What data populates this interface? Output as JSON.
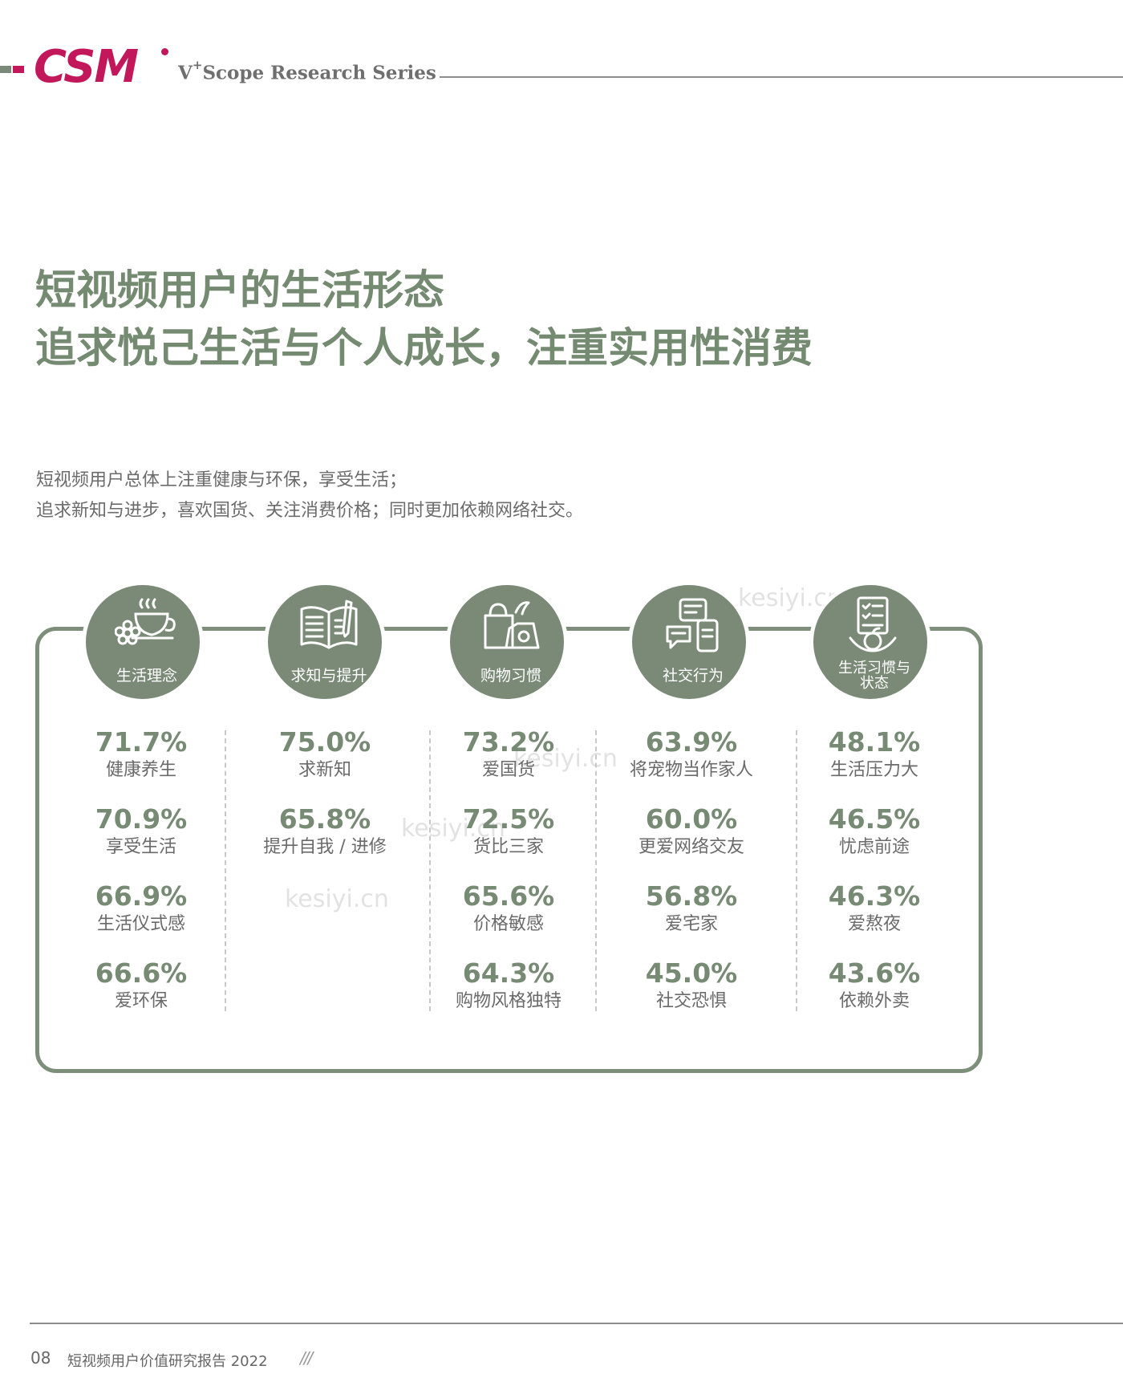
{
  "header": {
    "logo_text": "CSM",
    "series_prefix": "V",
    "series_sup": "+",
    "series_rest": "Scope Research Series",
    "brand_color": "#c2185b",
    "accent_color": "#7a8a77"
  },
  "title": {
    "line1": "短视频用户的生活形态",
    "line2": "追求悦己生活与个人成长，注重实用性消费"
  },
  "intro": {
    "line1": "短视频用户总体上注重健康与环保，享受生活；",
    "line2": "追求新知与进步，喜欢国货、关注消费价格；同时更加依赖网络社交。"
  },
  "watermark": "kesiyi.cn",
  "categories": [
    {
      "label": "生活理念",
      "icon": "tea-cup-flower-icon",
      "items": [
        {
          "pct": "71.7%",
          "label": "健康养生"
        },
        {
          "pct": "70.9%",
          "label": "享受生活"
        },
        {
          "pct": "66.9%",
          "label": "生活仪式感"
        },
        {
          "pct": "66.6%",
          "label": "爱环保"
        }
      ]
    },
    {
      "label": "求知与提升",
      "icon": "book-pen-icon",
      "items": [
        {
          "pct": "75.0%",
          "label": "求新知"
        },
        {
          "pct": "65.8%",
          "label": "提升自我 / 进修"
        }
      ]
    },
    {
      "label": "购物习惯",
      "icon": "shopping-bag-icon",
      "items": [
        {
          "pct": "73.2%",
          "label": "爱国货"
        },
        {
          "pct": "72.5%",
          "label": "货比三家"
        },
        {
          "pct": "65.6%",
          "label": "价格敏感"
        },
        {
          "pct": "64.3%",
          "label": "购物风格独特"
        }
      ]
    },
    {
      "label": "社交行为",
      "icon": "chat-phone-icon",
      "items": [
        {
          "pct": "63.9%",
          "label": "将宠物当作家人"
        },
        {
          "pct": "60.0%",
          "label": "更爱网络交友"
        },
        {
          "pct": "56.8%",
          "label": "爱宅家"
        },
        {
          "pct": "45.0%",
          "label": "社交恐惧"
        }
      ]
    },
    {
      "label": "生活习惯与\n状态",
      "label_line1": "生活习惯与",
      "label_line2": "状态",
      "icon": "checklist-apple-icon",
      "items": [
        {
          "pct": "48.1%",
          "label": "生活压力大"
        },
        {
          "pct": "46.5%",
          "label": "忧虑前途"
        },
        {
          "pct": "46.3%",
          "label": "爱熬夜"
        },
        {
          "pct": "43.6%",
          "label": "依赖外卖"
        }
      ]
    }
  ],
  "footer": {
    "page": "08",
    "text": "短视频用户价值研究报告 2022",
    "slashes": "///"
  }
}
